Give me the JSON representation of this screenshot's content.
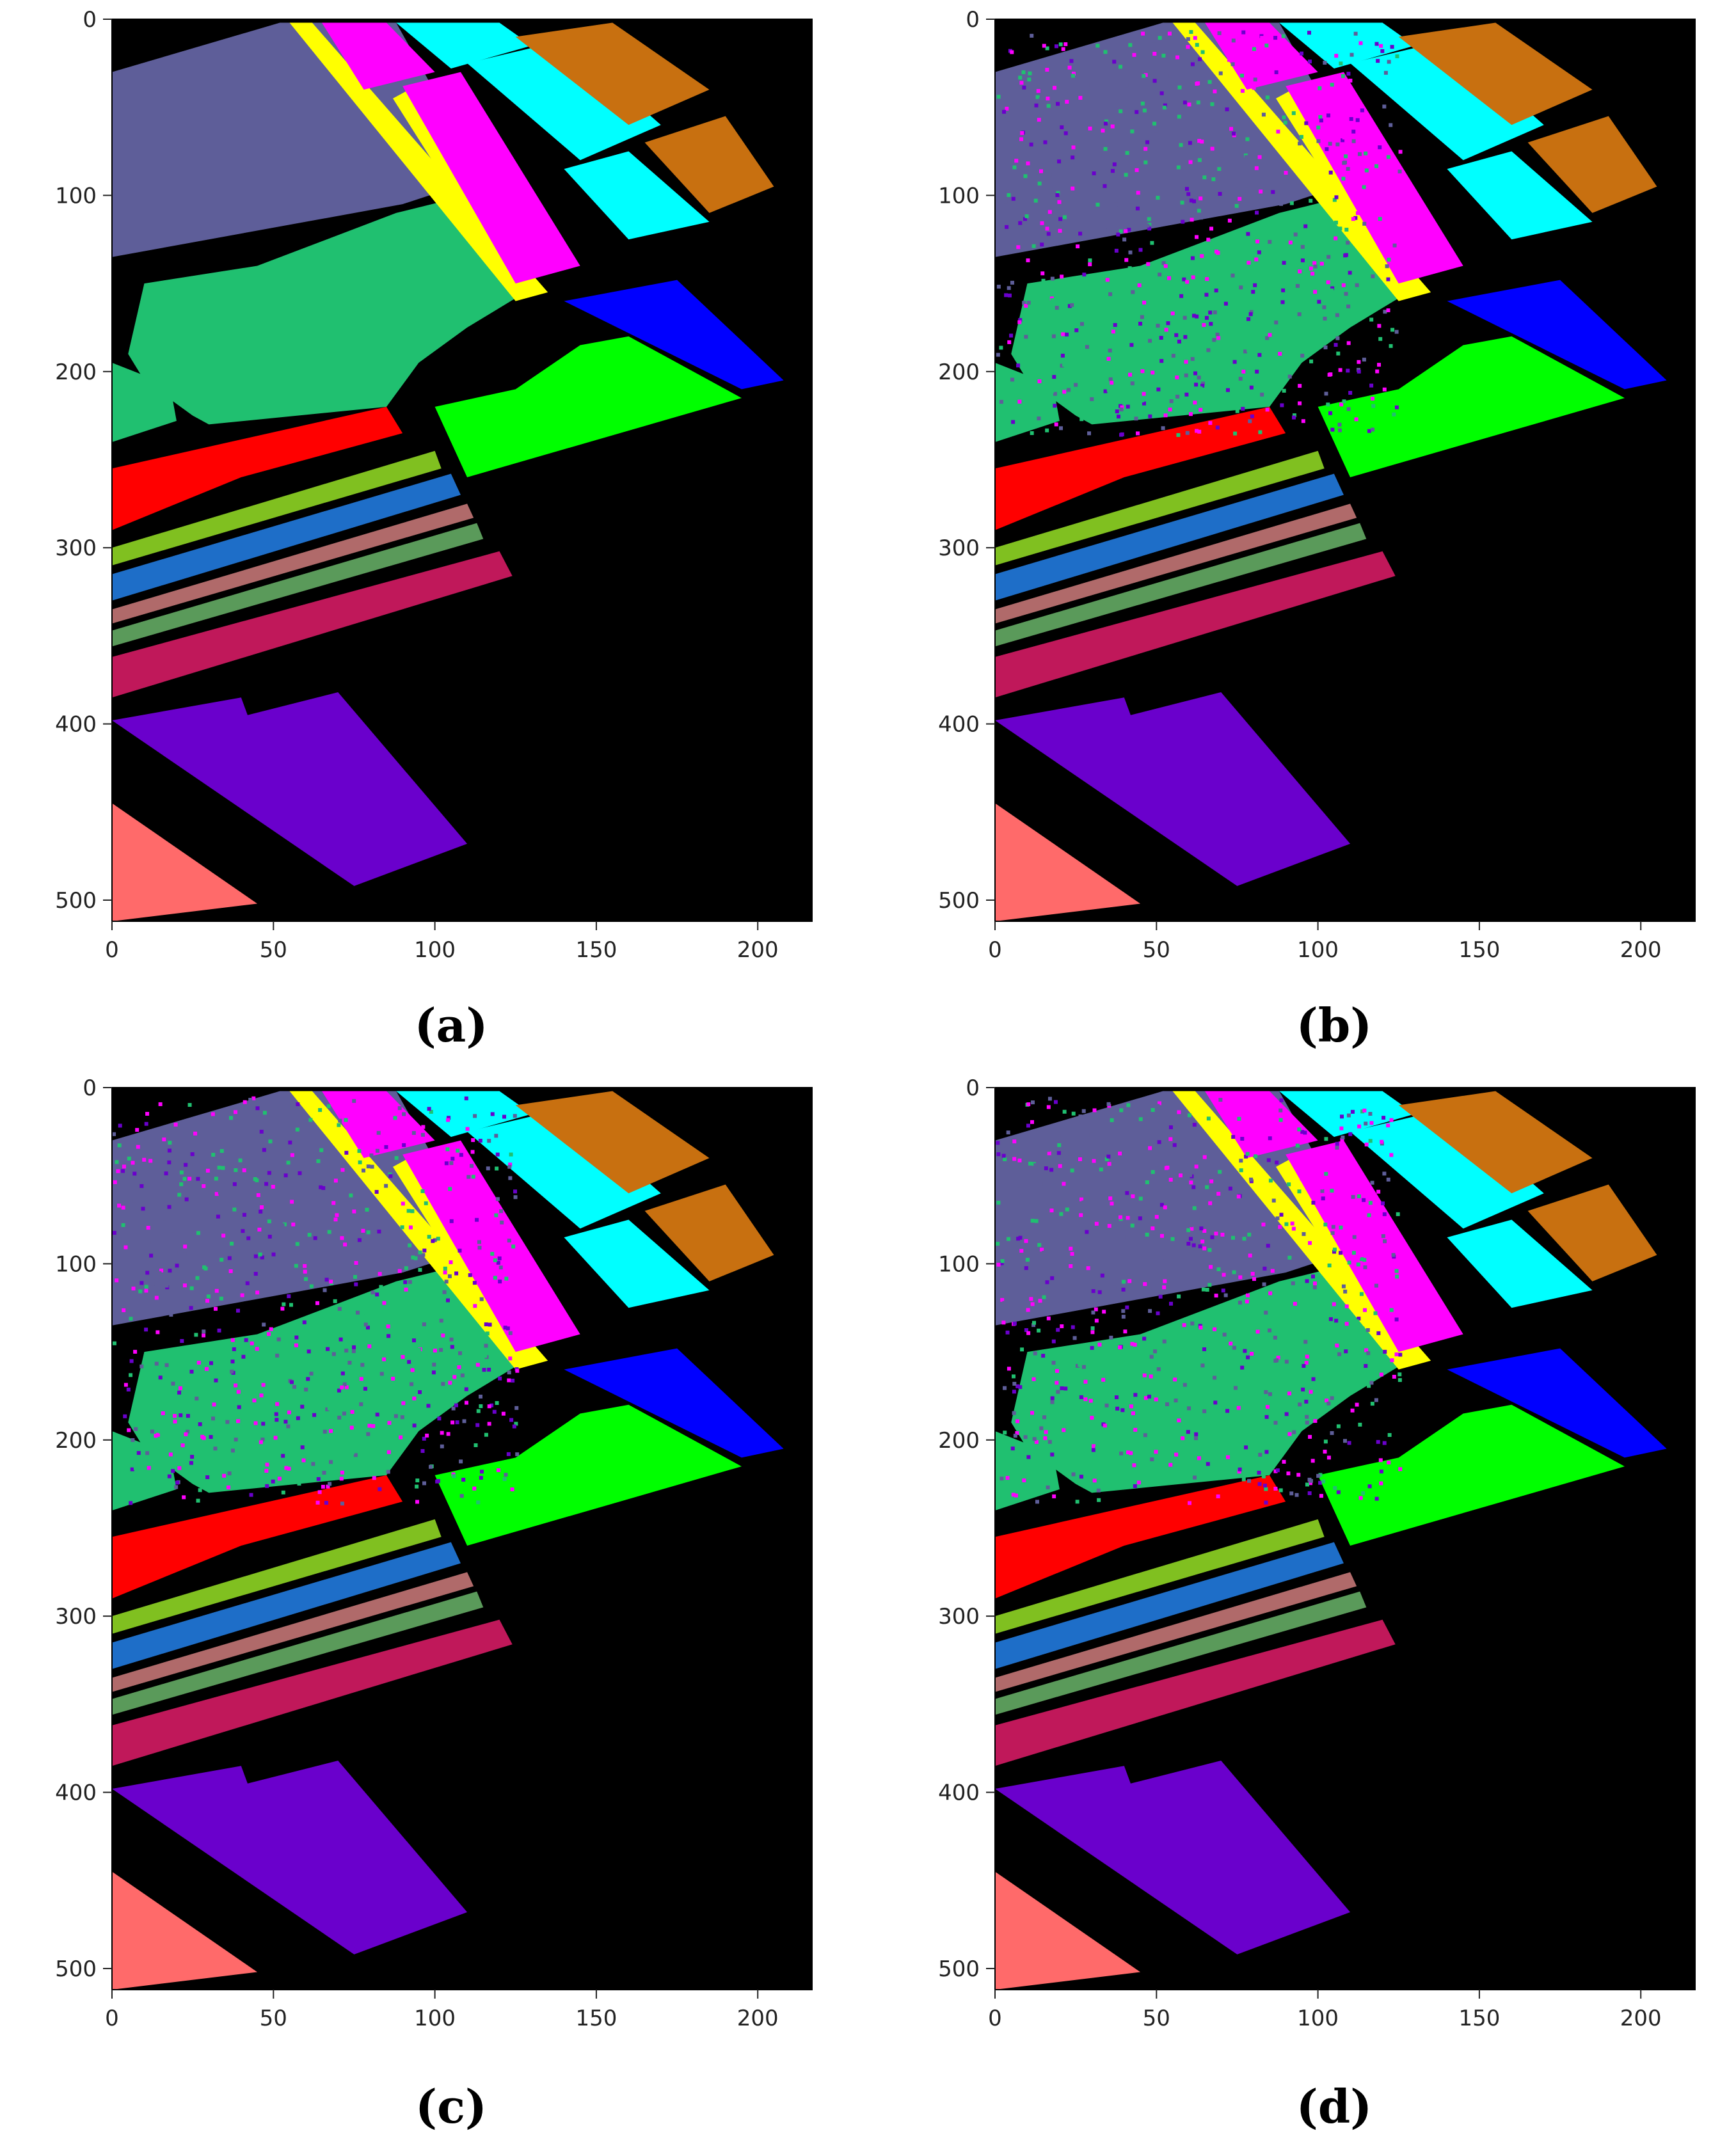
{
  "figure": {
    "panels": [
      {
        "id": "a",
        "caption": "(a)"
      },
      {
        "id": "b",
        "caption": "(b)"
      },
      {
        "id": "c",
        "caption": "(c)"
      },
      {
        "id": "d",
        "caption": "(d)"
      }
    ],
    "x_ticks": [
      "0",
      "50",
      "100",
      "150",
      "200"
    ],
    "y_ticks": [
      "0",
      "100",
      "200",
      "300",
      "400",
      "500"
    ],
    "x_tick_values": [
      0,
      50,
      100,
      150,
      200
    ],
    "y_tick_values": [
      0,
      100,
      200,
      300,
      400,
      500
    ],
    "x_range": [
      0,
      217
    ],
    "y_range": [
      0,
      512
    ],
    "background_color": "#000000",
    "class_colors": {
      "slate": "#5e5e99",
      "teal_green": "#20c070",
      "yellow": "#ffff00",
      "magenta": "#ff00ff",
      "cyan": "#00ffff",
      "orange_brown": "#c87010",
      "blue": "#0000ff",
      "lime": "#00ff00",
      "red": "#ff0000",
      "yellow_green": "#80c020",
      "steel_blue": "#1e6ec8",
      "mauve": "#b06a6a",
      "sage": "#5a9a5a",
      "crimson": "#c0185a",
      "violet": "#6a00cc",
      "salmon": "#ff6a6a"
    }
  }
}
